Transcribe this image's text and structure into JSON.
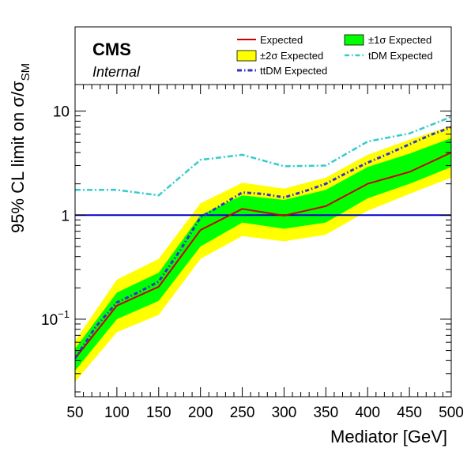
{
  "chart_data": {
    "type": "line",
    "title": "",
    "xlabel": "Mediator [GeV]",
    "ylabel": "95% CL limit on σ/σ",
    "ylabel_sub": "SM",
    "xlim": [
      50,
      500
    ],
    "ylim": [
      0.018,
      18
    ],
    "yscale": "log",
    "x_ticks": [
      50,
      100,
      150,
      200,
      250,
      300,
      350,
      400,
      450,
      500
    ],
    "y_ticks": [
      {
        "value": 0.1,
        "base": "10",
        "exp": "−1"
      },
      {
        "value": 1,
        "base": "1",
        "exp": ""
      },
      {
        "value": 10,
        "base": "10",
        "exp": ""
      }
    ],
    "grid": false,
    "legend_position": "top",
    "annotations": {
      "experiment": "CMS",
      "status": "Internal"
    },
    "reference_line": {
      "y": 1,
      "color": "#0000cc"
    },
    "x": [
      50,
      100,
      150,
      200,
      250,
      300,
      350,
      400,
      450,
      500
    ],
    "bands": [
      {
        "name": "±2σ Expected",
        "color": "#ffff00",
        "lower": [
          0.025,
          0.075,
          0.11,
          0.38,
          0.63,
          0.56,
          0.65,
          1.1,
          1.6,
          2.3
        ],
        "upper": [
          0.062,
          0.24,
          0.38,
          1.3,
          2.05,
          1.8,
          2.3,
          3.8,
          5.3,
          7.2
        ]
      },
      {
        "name": "±1σ Expected",
        "color": "#00ff00",
        "lower": [
          0.032,
          0.1,
          0.15,
          0.5,
          0.85,
          0.74,
          0.85,
          1.45,
          2.0,
          2.9
        ],
        "upper": [
          0.052,
          0.18,
          0.28,
          1.0,
          1.55,
          1.4,
          1.75,
          2.9,
          3.9,
          5.5
        ]
      }
    ],
    "series": [
      {
        "name": "Expected",
        "color": "#cc0000",
        "style": "solid",
        "values": [
          0.042,
          0.135,
          0.205,
          0.72,
          1.15,
          0.99,
          1.22,
          2.0,
          2.6,
          4.0
        ]
      },
      {
        "name": "ttDM Expected",
        "color": "#3333cc",
        "style": "dashdot",
        "x": [
          50,
          75,
          100,
          125,
          150,
          175,
          200,
          225,
          250,
          275,
          300,
          325,
          350,
          375,
          400,
          425,
          450,
          475,
          500
        ],
        "values": [
          0.042,
          0.085,
          0.145,
          0.18,
          0.23,
          0.45,
          0.95,
          1.25,
          1.65,
          1.6,
          1.48,
          1.7,
          2.0,
          2.55,
          3.2,
          3.9,
          4.8,
          5.9,
          7.0
        ]
      },
      {
        "name": "tDM Expected",
        "color": "#33cccc",
        "style": "dashdot",
        "values": [
          1.75,
          1.75,
          1.55,
          3.4,
          3.8,
          2.95,
          3.0,
          5.1,
          6.1,
          8.8
        ]
      }
    ]
  }
}
